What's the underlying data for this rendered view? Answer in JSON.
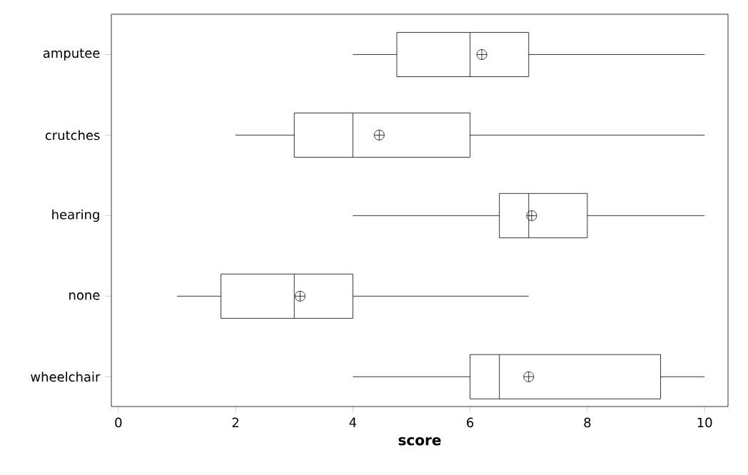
{
  "chart_data": {
    "type": "box",
    "orientation": "horizontal",
    "xlabel": "score",
    "categories": [
      "amputee",
      "crutches",
      "hearing",
      "none",
      "wheelchair"
    ],
    "boxes": [
      {
        "low": 4,
        "q1": 4.75,
        "median": 6,
        "q3": 7,
        "high": 10,
        "mean": 6.2
      },
      {
        "low": 2,
        "q1": 3,
        "median": 4,
        "q3": 6,
        "high": 10,
        "mean": 4.45
      },
      {
        "low": 4,
        "q1": 6.5,
        "median": 7,
        "q3": 8,
        "high": 10,
        "mean": 7.05
      },
      {
        "low": 1,
        "q1": 1.75,
        "median": 3,
        "q3": 4,
        "high": 7,
        "mean": 3.1
      },
      {
        "low": 4,
        "q1": 6,
        "median": 6.5,
        "q3": 9.25,
        "high": 10,
        "mean": 7
      }
    ],
    "xlim": [
      -0.12,
      10.4
    ],
    "xticks": [
      0,
      2,
      4,
      6,
      8,
      10
    ],
    "grid": false
  }
}
